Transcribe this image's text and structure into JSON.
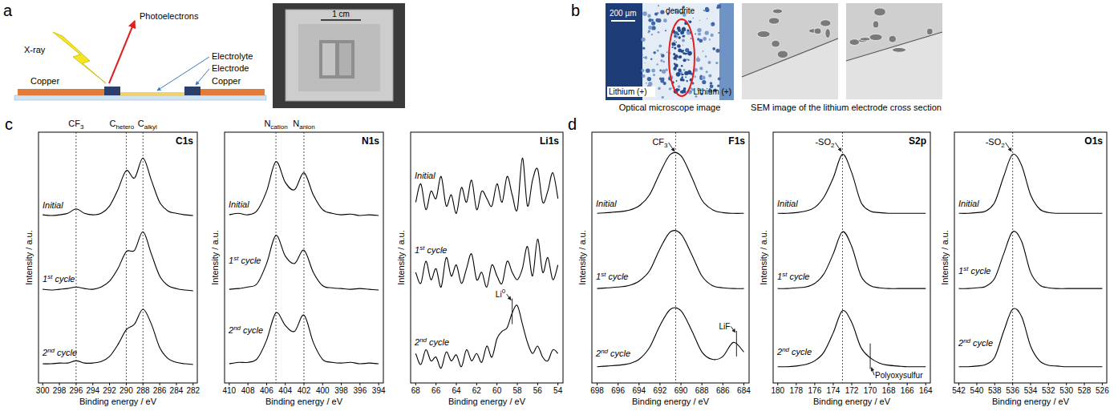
{
  "figure": {
    "panel_labels": [
      "a",
      "b",
      "c",
      "d"
    ],
    "schematic": {
      "photoelectrons": "Photoelectrons",
      "x_ray": "X-ray",
      "copper_left": "Copper",
      "electrolyte": "Electrolyte",
      "electrode": "Electrode",
      "copper_right": "Copper"
    },
    "photo": {
      "scale_bar": "1 cm"
    },
    "optical_image": {
      "dendrite": "dendrite",
      "scale_bar": "200 µm",
      "left_electrode": "Lithium (+)",
      "right_electrode": "Lithium (+)",
      "caption": "Optical microscope image"
    },
    "sem_images": {
      "caption": "SEM image of the lithium electrode cross section"
    }
  },
  "chart_data": [
    {
      "type": "line",
      "title": "C1s",
      "xlabel": "Binding energy / eV",
      "ylabel": "Intensity / a.u.",
      "x": [
        300,
        299,
        298,
        297,
        296,
        295,
        294,
        293,
        292,
        291,
        290,
        289,
        288,
        287,
        286,
        285,
        284,
        283,
        282
      ],
      "xlim": [
        300.5,
        281.5
      ],
      "xticks": [
        300,
        298,
        296,
        294,
        292,
        290,
        288,
        286,
        284,
        282
      ],
      "ylim": [
        0,
        3.4
      ],
      "tick_labels": "x",
      "grid": false,
      "series": [
        {
          "name": "Initial",
          "color": "#000000",
          "values": [
            2.28,
            2.27,
            2.28,
            2.3,
            2.36,
            2.3,
            2.28,
            2.3,
            2.4,
            2.62,
            2.88,
            2.78,
            3.05,
            2.75,
            2.45,
            2.33,
            2.3,
            2.28,
            2.27
          ]
        },
        {
          "name": "1st cycle",
          "color": "#000000",
          "values": [
            1.27,
            1.26,
            1.27,
            1.28,
            1.3,
            1.28,
            1.27,
            1.3,
            1.38,
            1.55,
            1.78,
            1.8,
            2.05,
            1.75,
            1.45,
            1.32,
            1.28,
            1.26,
            1.25
          ]
        },
        {
          "name": "2nd cycle",
          "color": "#000000",
          "values": [
            0.26,
            0.26,
            0.27,
            0.27,
            0.3,
            0.27,
            0.27,
            0.29,
            0.36,
            0.52,
            0.72,
            0.8,
            1.0,
            0.8,
            0.48,
            0.33,
            0.28,
            0.26,
            0.25
          ]
        }
      ],
      "annotations": [
        {
          "text": "CF",
          "sub": "3",
          "x": 296,
          "line_style": "dotted"
        },
        {
          "text": "C",
          "sub": "hetero",
          "x": 290,
          "line_style": "dotted"
        },
        {
          "text": "C",
          "sub": "alkyl",
          "x": 288,
          "line_style": "dotted"
        }
      ]
    },
    {
      "type": "line",
      "title": "N1s",
      "xlabel": "Binding energy / eV",
      "ylabel": "Intensity / a.u.",
      "x": [
        410,
        409,
        408,
        407,
        406,
        405,
        404,
        403,
        402,
        401,
        400,
        399,
        398,
        397,
        396,
        395,
        394
      ],
      "xlim": [
        410.5,
        393.5
      ],
      "xticks": [
        410,
        408,
        406,
        404,
        402,
        400,
        398,
        396,
        394
      ],
      "ylim": [
        0,
        3.4
      ],
      "tick_labels": "x",
      "grid": false,
      "series": [
        {
          "name": "Initial",
          "color": "#000000",
          "values": [
            2.28,
            2.3,
            2.28,
            2.34,
            2.6,
            3.0,
            2.72,
            2.62,
            2.85,
            2.55,
            2.35,
            2.3,
            2.28,
            2.29,
            2.27,
            2.28,
            2.27
          ]
        },
        {
          "name": "1st cycle",
          "color": "#000000",
          "values": [
            1.27,
            1.28,
            1.3,
            1.35,
            1.62,
            2.0,
            1.72,
            1.62,
            1.8,
            1.5,
            1.32,
            1.29,
            1.28,
            1.27,
            1.28,
            1.27,
            1.26
          ]
        },
        {
          "name": "2nd cycle",
          "color": "#000000",
          "values": [
            0.26,
            0.28,
            0.28,
            0.33,
            0.58,
            0.95,
            0.78,
            0.7,
            0.92,
            0.55,
            0.32,
            0.28,
            0.27,
            0.28,
            0.26,
            0.27,
            0.26
          ]
        }
      ],
      "annotations": [
        {
          "text": "N",
          "sub": "cation",
          "x": 405,
          "line_style": "dotted"
        },
        {
          "text": "N",
          "sub": "anion",
          "x": 402,
          "line_style": "dotted"
        }
      ]
    },
    {
      "type": "line",
      "title": "Li1s",
      "xlabel": "Binding energy / eV",
      "ylabel": "Intensity / a.u.",
      "x": [
        68,
        67.5,
        67,
        66.5,
        66,
        65.5,
        65,
        64.5,
        64,
        63.5,
        63,
        62.5,
        62,
        61.5,
        61,
        60.5,
        60,
        59.5,
        59,
        58.5,
        58,
        57.5,
        57,
        56.5,
        56,
        55.5,
        55,
        54.5,
        54
      ],
      "xlim": [
        68.5,
        53.5
      ],
      "xticks": [
        68,
        66,
        64,
        62,
        60,
        58,
        56,
        54
      ],
      "ylim": [
        0,
        3.4
      ],
      "tick_labels": "x",
      "grid": false,
      "series": [
        {
          "name": "Initial",
          "color": "#000000",
          "values": [
            2.45,
            2.7,
            2.35,
            2.6,
            2.5,
            2.8,
            2.4,
            2.55,
            2.3,
            2.65,
            2.45,
            2.75,
            2.35,
            2.6,
            2.5,
            2.4,
            2.7,
            2.45,
            2.8,
            2.55,
            2.35,
            3.05,
            2.4,
            2.75,
            2.9,
            2.45,
            2.6,
            2.85,
            2.5
          ]
        },
        {
          "name": "1st cycle",
          "color": "#000000",
          "values": [
            1.5,
            1.35,
            1.65,
            1.4,
            1.55,
            1.3,
            1.7,
            1.45,
            1.6,
            1.35,
            1.55,
            1.75,
            1.4,
            1.5,
            1.3,
            1.6,
            1.45,
            1.35,
            1.65,
            1.5,
            1.4,
            1.55,
            1.85,
            1.45,
            1.95,
            1.5,
            1.7,
            1.4,
            1.6
          ]
        },
        {
          "name": "2nd cycle",
          "color": "#000000",
          "values": [
            0.4,
            0.25,
            0.45,
            0.3,
            0.35,
            0.2,
            0.42,
            0.3,
            0.38,
            0.22,
            0.45,
            0.3,
            0.4,
            0.28,
            0.5,
            0.35,
            0.6,
            0.7,
            0.75,
            0.95,
            1.05,
            0.8,
            0.55,
            0.4,
            0.5,
            0.35,
            0.3,
            0.45,
            0.4
          ]
        }
      ],
      "annotations": [
        {
          "text": "Li",
          "sup": "0",
          "x": 58.5,
          "line_style": "solid",
          "marker": "arrow"
        }
      ]
    },
    {
      "type": "line",
      "title": "F1s",
      "xlabel": "Binding energy / eV",
      "ylabel": "Intensity / a.u.",
      "x": [
        698,
        697,
        696,
        695,
        694,
        693,
        692,
        691,
        690,
        689,
        688,
        687,
        686,
        685,
        684
      ],
      "xlim": [
        698.5,
        683.5
      ],
      "xticks": [
        698,
        696,
        694,
        692,
        690,
        688,
        686,
        684
      ],
      "ylim": [
        0,
        3.4
      ],
      "tick_labels": "x",
      "grid": false,
      "series": [
        {
          "name": "Initial",
          "color": "#000000",
          "values": [
            2.3,
            2.31,
            2.32,
            2.34,
            2.4,
            2.55,
            2.85,
            3.1,
            3.08,
            2.8,
            2.48,
            2.35,
            2.31,
            2.3,
            2.3
          ]
        },
        {
          "name": "1st cycle",
          "color": "#000000",
          "values": [
            1.28,
            1.29,
            1.3,
            1.32,
            1.38,
            1.52,
            1.82,
            2.05,
            2.02,
            1.75,
            1.45,
            1.32,
            1.29,
            1.28,
            1.28
          ]
        },
        {
          "name": "2nd cycle",
          "color": "#000000",
          "values": [
            0.22,
            0.23,
            0.24,
            0.26,
            0.32,
            0.48,
            0.78,
            1.0,
            0.98,
            0.72,
            0.42,
            0.32,
            0.36,
            0.55,
            0.42
          ]
        }
      ],
      "annotations": [
        {
          "text": "CF",
          "sub": "3",
          "x": 690.5,
          "line_style": "dotted",
          "marker": "arrow"
        },
        {
          "text": "LiF",
          "x": 684.7,
          "line_style": "solid",
          "marker": "arrow"
        }
      ]
    },
    {
      "type": "line",
      "title": "S2p",
      "xlabel": "Binding energy / eV",
      "ylabel": "Intensity / a.u.",
      "x": [
        180,
        179,
        178,
        177,
        176,
        175,
        174,
        173,
        172,
        171,
        170,
        169,
        168,
        167,
        166,
        165,
        164
      ],
      "xlim": [
        180.5,
        163.5
      ],
      "xticks": [
        180,
        178,
        176,
        174,
        172,
        170,
        168,
        166,
        164
      ],
      "ylim": [
        0,
        3.4
      ],
      "tick_labels": "x",
      "grid": false,
      "series": [
        {
          "name": "Initial",
          "color": "#000000",
          "values": [
            2.3,
            2.3,
            2.31,
            2.33,
            2.38,
            2.52,
            2.78,
            3.1,
            2.85,
            2.45,
            2.33,
            2.31,
            2.3,
            2.3,
            2.3,
            2.3,
            2.3
          ]
        },
        {
          "name": "1st cycle",
          "color": "#000000",
          "values": [
            1.28,
            1.28,
            1.29,
            1.3,
            1.35,
            1.48,
            1.75,
            2.05,
            1.85,
            1.45,
            1.32,
            1.29,
            1.28,
            1.28,
            1.28,
            1.28,
            1.28
          ]
        },
        {
          "name": "2nd cycle",
          "color": "#000000",
          "values": [
            0.22,
            0.22,
            0.23,
            0.25,
            0.3,
            0.42,
            0.68,
            0.98,
            0.82,
            0.48,
            0.34,
            0.27,
            0.24,
            0.23,
            0.22,
            0.22,
            0.22
          ]
        }
      ],
      "annotations": [
        {
          "text": "-SO",
          "sub": "2",
          "x": 173,
          "line_style": "dotted",
          "marker": "arrow"
        },
        {
          "text": "Polyoxysulfur",
          "x": 170,
          "line_style": "solid",
          "marker": "arrow"
        }
      ]
    },
    {
      "type": "line",
      "title": "O1s",
      "xlabel": "Binding energy / eV",
      "ylabel": "Intensity / a.u.",
      "x": [
        542,
        541,
        540,
        539,
        538,
        537,
        536,
        535,
        534,
        533,
        532,
        531,
        530,
        529,
        528,
        527,
        526
      ],
      "xlim": [
        542.5,
        525.5
      ],
      "xticks": [
        542,
        540,
        538,
        536,
        534,
        532,
        530,
        528,
        526
      ],
      "ylim": [
        0,
        3.4
      ],
      "tick_labels": "x",
      "grid": false,
      "series": [
        {
          "name": "Initial",
          "color": "#000000",
          "values": [
            2.3,
            2.3,
            2.31,
            2.33,
            2.45,
            2.8,
            3.1,
            2.95,
            2.55,
            2.36,
            2.31,
            2.3,
            2.3,
            2.3,
            2.3,
            2.3,
            2.3
          ]
        },
        {
          "name": "1st cycle",
          "color": "#000000",
          "values": [
            1.28,
            1.28,
            1.29,
            1.31,
            1.42,
            1.75,
            2.05,
            1.92,
            1.5,
            1.33,
            1.29,
            1.28,
            1.28,
            1.28,
            1.28,
            1.28,
            1.28
          ]
        },
        {
          "name": "2nd cycle",
          "color": "#000000",
          "values": [
            0.22,
            0.22,
            0.23,
            0.25,
            0.35,
            0.7,
            1.0,
            0.9,
            0.5,
            0.3,
            0.24,
            0.23,
            0.22,
            0.22,
            0.22,
            0.22,
            0.22
          ]
        }
      ],
      "annotations": [
        {
          "text": "-SO",
          "sub": "2",
          "x": 536,
          "line_style": "dotted",
          "marker": "arrow"
        }
      ]
    }
  ]
}
